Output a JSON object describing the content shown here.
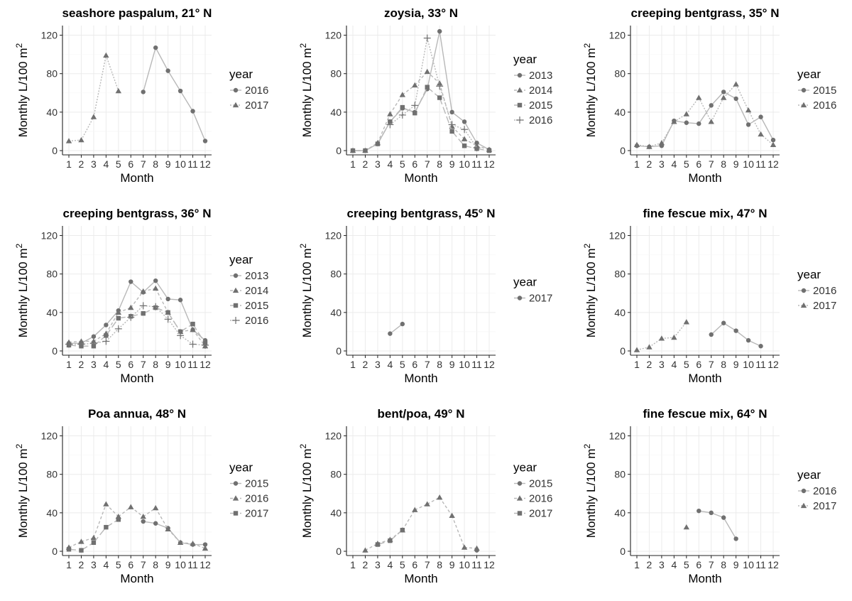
{
  "figure": {
    "legend_title": "year",
    "x_axis_label": "Month",
    "y_axis_label": "Monthly L/100 m",
    "y_axis_superscript": "2",
    "x_ticks": [
      1,
      2,
      3,
      4,
      5,
      6,
      7,
      8,
      9,
      10,
      11,
      12
    ],
    "y_ticks": [
      0,
      40,
      80,
      120
    ],
    "year_styles": {
      "2013": {
        "shape": "circle",
        "dash": ""
      },
      "2014": {
        "shape": "triangle",
        "dash": "4,3"
      },
      "2015": {
        "shape": "square",
        "dash": "10,4"
      },
      "2016": {
        "shape": "plus",
        "dash": "2,2"
      },
      "2017": {
        "shape": "triangle",
        "dash": "2,2"
      }
    },
    "colors": {
      "points": "#707070",
      "lines": "#b8b8b8",
      "grid": "#ebebeb",
      "axis": "#222222"
    }
  },
  "chart_data": [
    {
      "type": "line",
      "title": "seashore paspalum, 21° N",
      "xlabel": "Month",
      "ylabel": "Monthly L/100 m²",
      "xlim": [
        1,
        12
      ],
      "ylim": [
        0,
        130
      ],
      "legend_title": "year",
      "series": [
        {
          "name": "2016",
          "shape": "circle",
          "dash": "",
          "points": [
            [
              7,
              61
            ],
            [
              8,
              107
            ],
            [
              9,
              83
            ],
            [
              10,
              62
            ],
            [
              11,
              41
            ],
            [
              12,
              10
            ]
          ]
        },
        {
          "name": "2017",
          "shape": "triangle",
          "dash": "2,2",
          "points": [
            [
              1,
              10
            ],
            [
              2,
              11
            ],
            [
              3,
              35
            ],
            [
              4,
              99
            ],
            [
              5,
              62
            ]
          ]
        }
      ]
    },
    {
      "type": "line",
      "title": "zoysia, 33° N",
      "xlabel": "Month",
      "ylabel": "Monthly L/100 m²",
      "xlim": [
        1,
        12
      ],
      "ylim": [
        0,
        130
      ],
      "legend_title": "year",
      "series": [
        {
          "name": "2013",
          "shape": "circle",
          "dash": "",
          "points": [
            [
              1,
              0
            ],
            [
              2,
              0
            ],
            [
              3,
              7
            ],
            [
              4,
              30
            ],
            [
              5,
              44
            ],
            [
              6,
              40
            ],
            [
              7,
              64
            ],
            [
              8,
              124
            ],
            [
              9,
              40
            ],
            [
              10,
              30
            ],
            [
              11,
              8
            ],
            [
              12,
              1
            ]
          ]
        },
        {
          "name": "2014",
          "shape": "triangle",
          "dash": "4,3",
          "points": [
            [
              1,
              0
            ],
            [
              2,
              0
            ],
            [
              3,
              8
            ],
            [
              4,
              38
            ],
            [
              5,
              58
            ],
            [
              6,
              68
            ],
            [
              7,
              82
            ],
            [
              8,
              70
            ],
            [
              9,
              25
            ],
            [
              10,
              12
            ],
            [
              11,
              5
            ],
            [
              12,
              1
            ]
          ]
        },
        {
          "name": "2015",
          "shape": "square",
          "dash": "10,4",
          "points": [
            [
              1,
              0
            ],
            [
              2,
              0
            ],
            [
              3,
              7
            ],
            [
              4,
              30
            ],
            [
              5,
              45
            ],
            [
              6,
              39
            ],
            [
              7,
              66
            ],
            [
              8,
              55
            ],
            [
              9,
              20
            ],
            [
              10,
              5
            ],
            [
              11,
              2
            ],
            [
              12,
              0
            ]
          ]
        },
        {
          "name": "2016",
          "shape": "plus",
          "dash": "2,2",
          "points": [
            [
              4,
              27
            ],
            [
              5,
              37
            ],
            [
              6,
              47
            ],
            [
              7,
              117
            ],
            [
              8,
              67
            ],
            [
              9,
              27
            ],
            [
              10,
              22
            ],
            [
              11,
              3
            ]
          ]
        }
      ]
    },
    {
      "type": "line",
      "title": "creeping bentgrass, 35° N",
      "xlabel": "Month",
      "ylabel": "Monthly L/100 m²",
      "xlim": [
        1,
        12
      ],
      "ylim": [
        0,
        130
      ],
      "legend_title": "year",
      "series": [
        {
          "name": "2015",
          "shape": "circle",
          "dash": "",
          "points": [
            [
              1,
              5
            ],
            [
              2,
              4
            ],
            [
              3,
              5
            ],
            [
              4,
              31
            ],
            [
              5,
              29
            ],
            [
              6,
              28
            ],
            [
              7,
              47
            ],
            [
              8,
              61
            ],
            [
              9,
              54
            ],
            [
              10,
              27
            ],
            [
              11,
              35
            ],
            [
              12,
              11
            ]
          ]
        },
        {
          "name": "2016",
          "shape": "triangle",
          "dash": "2,2",
          "points": [
            [
              1,
              6
            ],
            [
              2,
              4
            ],
            [
              3,
              8
            ],
            [
              4,
              30
            ],
            [
              5,
              38
            ],
            [
              6,
              55
            ],
            [
              7,
              30
            ],
            [
              8,
              55
            ],
            [
              9,
              69
            ],
            [
              10,
              42
            ],
            [
              11,
              17
            ],
            [
              12,
              6
            ]
          ]
        }
      ]
    },
    {
      "type": "line",
      "title": "creeping bentgrass, 36° N",
      "xlabel": "Month",
      "ylabel": "Monthly L/100 m²",
      "xlim": [
        1,
        12
      ],
      "ylim": [
        0,
        130
      ],
      "legend_title": "year",
      "series": [
        {
          "name": "2013",
          "shape": "circle",
          "dash": "",
          "points": [
            [
              1,
              8
            ],
            [
              2,
              8
            ],
            [
              3,
              15
            ],
            [
              4,
              27
            ],
            [
              5,
              42
            ],
            [
              6,
              72
            ],
            [
              7,
              61
            ],
            [
              8,
              73
            ],
            [
              9,
              54
            ],
            [
              10,
              53
            ],
            [
              11,
              22
            ],
            [
              12,
              11
            ]
          ]
        },
        {
          "name": "2014",
          "shape": "triangle",
          "dash": "4,3",
          "points": [
            [
              1,
              9
            ],
            [
              2,
              10
            ],
            [
              3,
              10
            ],
            [
              4,
              18
            ],
            [
              5,
              40
            ],
            [
              6,
              45
            ],
            [
              7,
              62
            ],
            [
              8,
              65
            ],
            [
              9,
              40
            ],
            [
              10,
              20
            ],
            [
              11,
              22
            ],
            [
              12,
              5
            ]
          ]
        },
        {
          "name": "2015",
          "shape": "square",
          "dash": "10,4",
          "points": [
            [
              1,
              6
            ],
            [
              2,
              5
            ],
            [
              3,
              5
            ],
            [
              4,
              16
            ],
            [
              5,
              34
            ],
            [
              6,
              36
            ],
            [
              7,
              39
            ],
            [
              8,
              45
            ],
            [
              9,
              40
            ],
            [
              10,
              20
            ],
            [
              11,
              28
            ],
            [
              12,
              8
            ]
          ]
        },
        {
          "name": "2016",
          "shape": "plus",
          "dash": "2,2",
          "points": [
            [
              1,
              7
            ],
            [
              2,
              7
            ],
            [
              3,
              8
            ],
            [
              4,
              10
            ],
            [
              5,
              23
            ],
            [
              6,
              35
            ],
            [
              7,
              47
            ],
            [
              8,
              46
            ],
            [
              9,
              33
            ],
            [
              10,
              16
            ],
            [
              11,
              7
            ],
            [
              12,
              6
            ]
          ]
        }
      ]
    },
    {
      "type": "line",
      "title": "creeping bentgrass, 45° N",
      "xlabel": "Month",
      "ylabel": "Monthly L/100 m²",
      "xlim": [
        1,
        12
      ],
      "ylim": [
        0,
        130
      ],
      "legend_title": "year",
      "series": [
        {
          "name": "2017",
          "shape": "circle",
          "dash": "",
          "points": [
            [
              4,
              18
            ],
            [
              5,
              28
            ]
          ]
        }
      ]
    },
    {
      "type": "line",
      "title": "fine fescue mix, 47° N",
      "xlabel": "Month",
      "ylabel": "Monthly L/100 m²",
      "xlim": [
        1,
        12
      ],
      "ylim": [
        0,
        130
      ],
      "legend_title": "year",
      "series": [
        {
          "name": "2016",
          "shape": "circle",
          "dash": "",
          "points": [
            [
              7,
              17
            ],
            [
              8,
              29
            ],
            [
              9,
              21
            ],
            [
              10,
              11
            ],
            [
              11,
              5
            ]
          ]
        },
        {
          "name": "2017",
          "shape": "triangle",
          "dash": "2,2",
          "points": [
            [
              1,
              1
            ],
            [
              2,
              4
            ],
            [
              3,
              13
            ],
            [
              4,
              14
            ],
            [
              5,
              30
            ]
          ]
        }
      ]
    },
    {
      "type": "line",
      "title": "Poa annua, 48° N",
      "xlabel": "Month",
      "ylabel": "Monthly L/100 m²",
      "xlim": [
        1,
        12
      ],
      "ylim": [
        0,
        130
      ],
      "legend_title": "year",
      "series": [
        {
          "name": "2015",
          "shape": "circle",
          "dash": "",
          "points": [
            [
              7,
              31
            ],
            [
              8,
              29
            ],
            [
              9,
              24
            ],
            [
              10,
              9
            ],
            [
              11,
              7
            ],
            [
              12,
              7
            ]
          ]
        },
        {
          "name": "2016",
          "shape": "triangle",
          "dash": "4,3",
          "points": [
            [
              1,
              4
            ],
            [
              2,
              10
            ],
            [
              3,
              14
            ],
            [
              4,
              49
            ],
            [
              5,
              36
            ],
            [
              6,
              46
            ],
            [
              7,
              36
            ],
            [
              8,
              45
            ],
            [
              9,
              23
            ],
            [
              10,
              9
            ],
            [
              11,
              8
            ],
            [
              12,
              3
            ]
          ]
        },
        {
          "name": "2017",
          "shape": "square",
          "dash": "10,4",
          "points": [
            [
              1,
              2
            ],
            [
              2,
              1
            ],
            [
              3,
              9
            ],
            [
              4,
              25
            ],
            [
              5,
              33
            ]
          ]
        }
      ]
    },
    {
      "type": "line",
      "title": "bent/poa, 49° N",
      "xlabel": "Month",
      "ylabel": "Monthly L/100 m²",
      "xlim": [
        1,
        12
      ],
      "ylim": [
        0,
        130
      ],
      "legend_title": "year",
      "series": [
        {
          "name": "2015",
          "shape": "circle",
          "dash": "",
          "points": [
            [
              11,
              1
            ]
          ]
        },
        {
          "name": "2016",
          "shape": "triangle",
          "dash": "4,3",
          "points": [
            [
              2,
              1
            ],
            [
              3,
              8
            ],
            [
              4,
              12
            ],
            [
              5,
              22
            ],
            [
              6,
              43
            ],
            [
              7,
              49
            ],
            [
              8,
              56
            ],
            [
              9,
              37
            ],
            [
              10,
              4
            ],
            [
              11,
              3
            ]
          ]
        },
        {
          "name": "2017",
          "shape": "square",
          "dash": "10,4",
          "points": [
            [
              3,
              7
            ],
            [
              4,
              11
            ],
            [
              5,
              22
            ]
          ]
        }
      ]
    },
    {
      "type": "line",
      "title": "fine fescue mix, 64° N",
      "xlabel": "Month",
      "ylabel": "Monthly L/100 m²",
      "xlim": [
        1,
        12
      ],
      "ylim": [
        0,
        130
      ],
      "legend_title": "year",
      "series": [
        {
          "name": "2016",
          "shape": "circle",
          "dash": "",
          "points": [
            [
              6,
              42
            ],
            [
              7,
              40
            ],
            [
              8,
              35
            ],
            [
              9,
              13
            ]
          ]
        },
        {
          "name": "2017",
          "shape": "triangle",
          "dash": "2,2",
          "points": [
            [
              5,
              25
            ]
          ]
        }
      ]
    }
  ]
}
